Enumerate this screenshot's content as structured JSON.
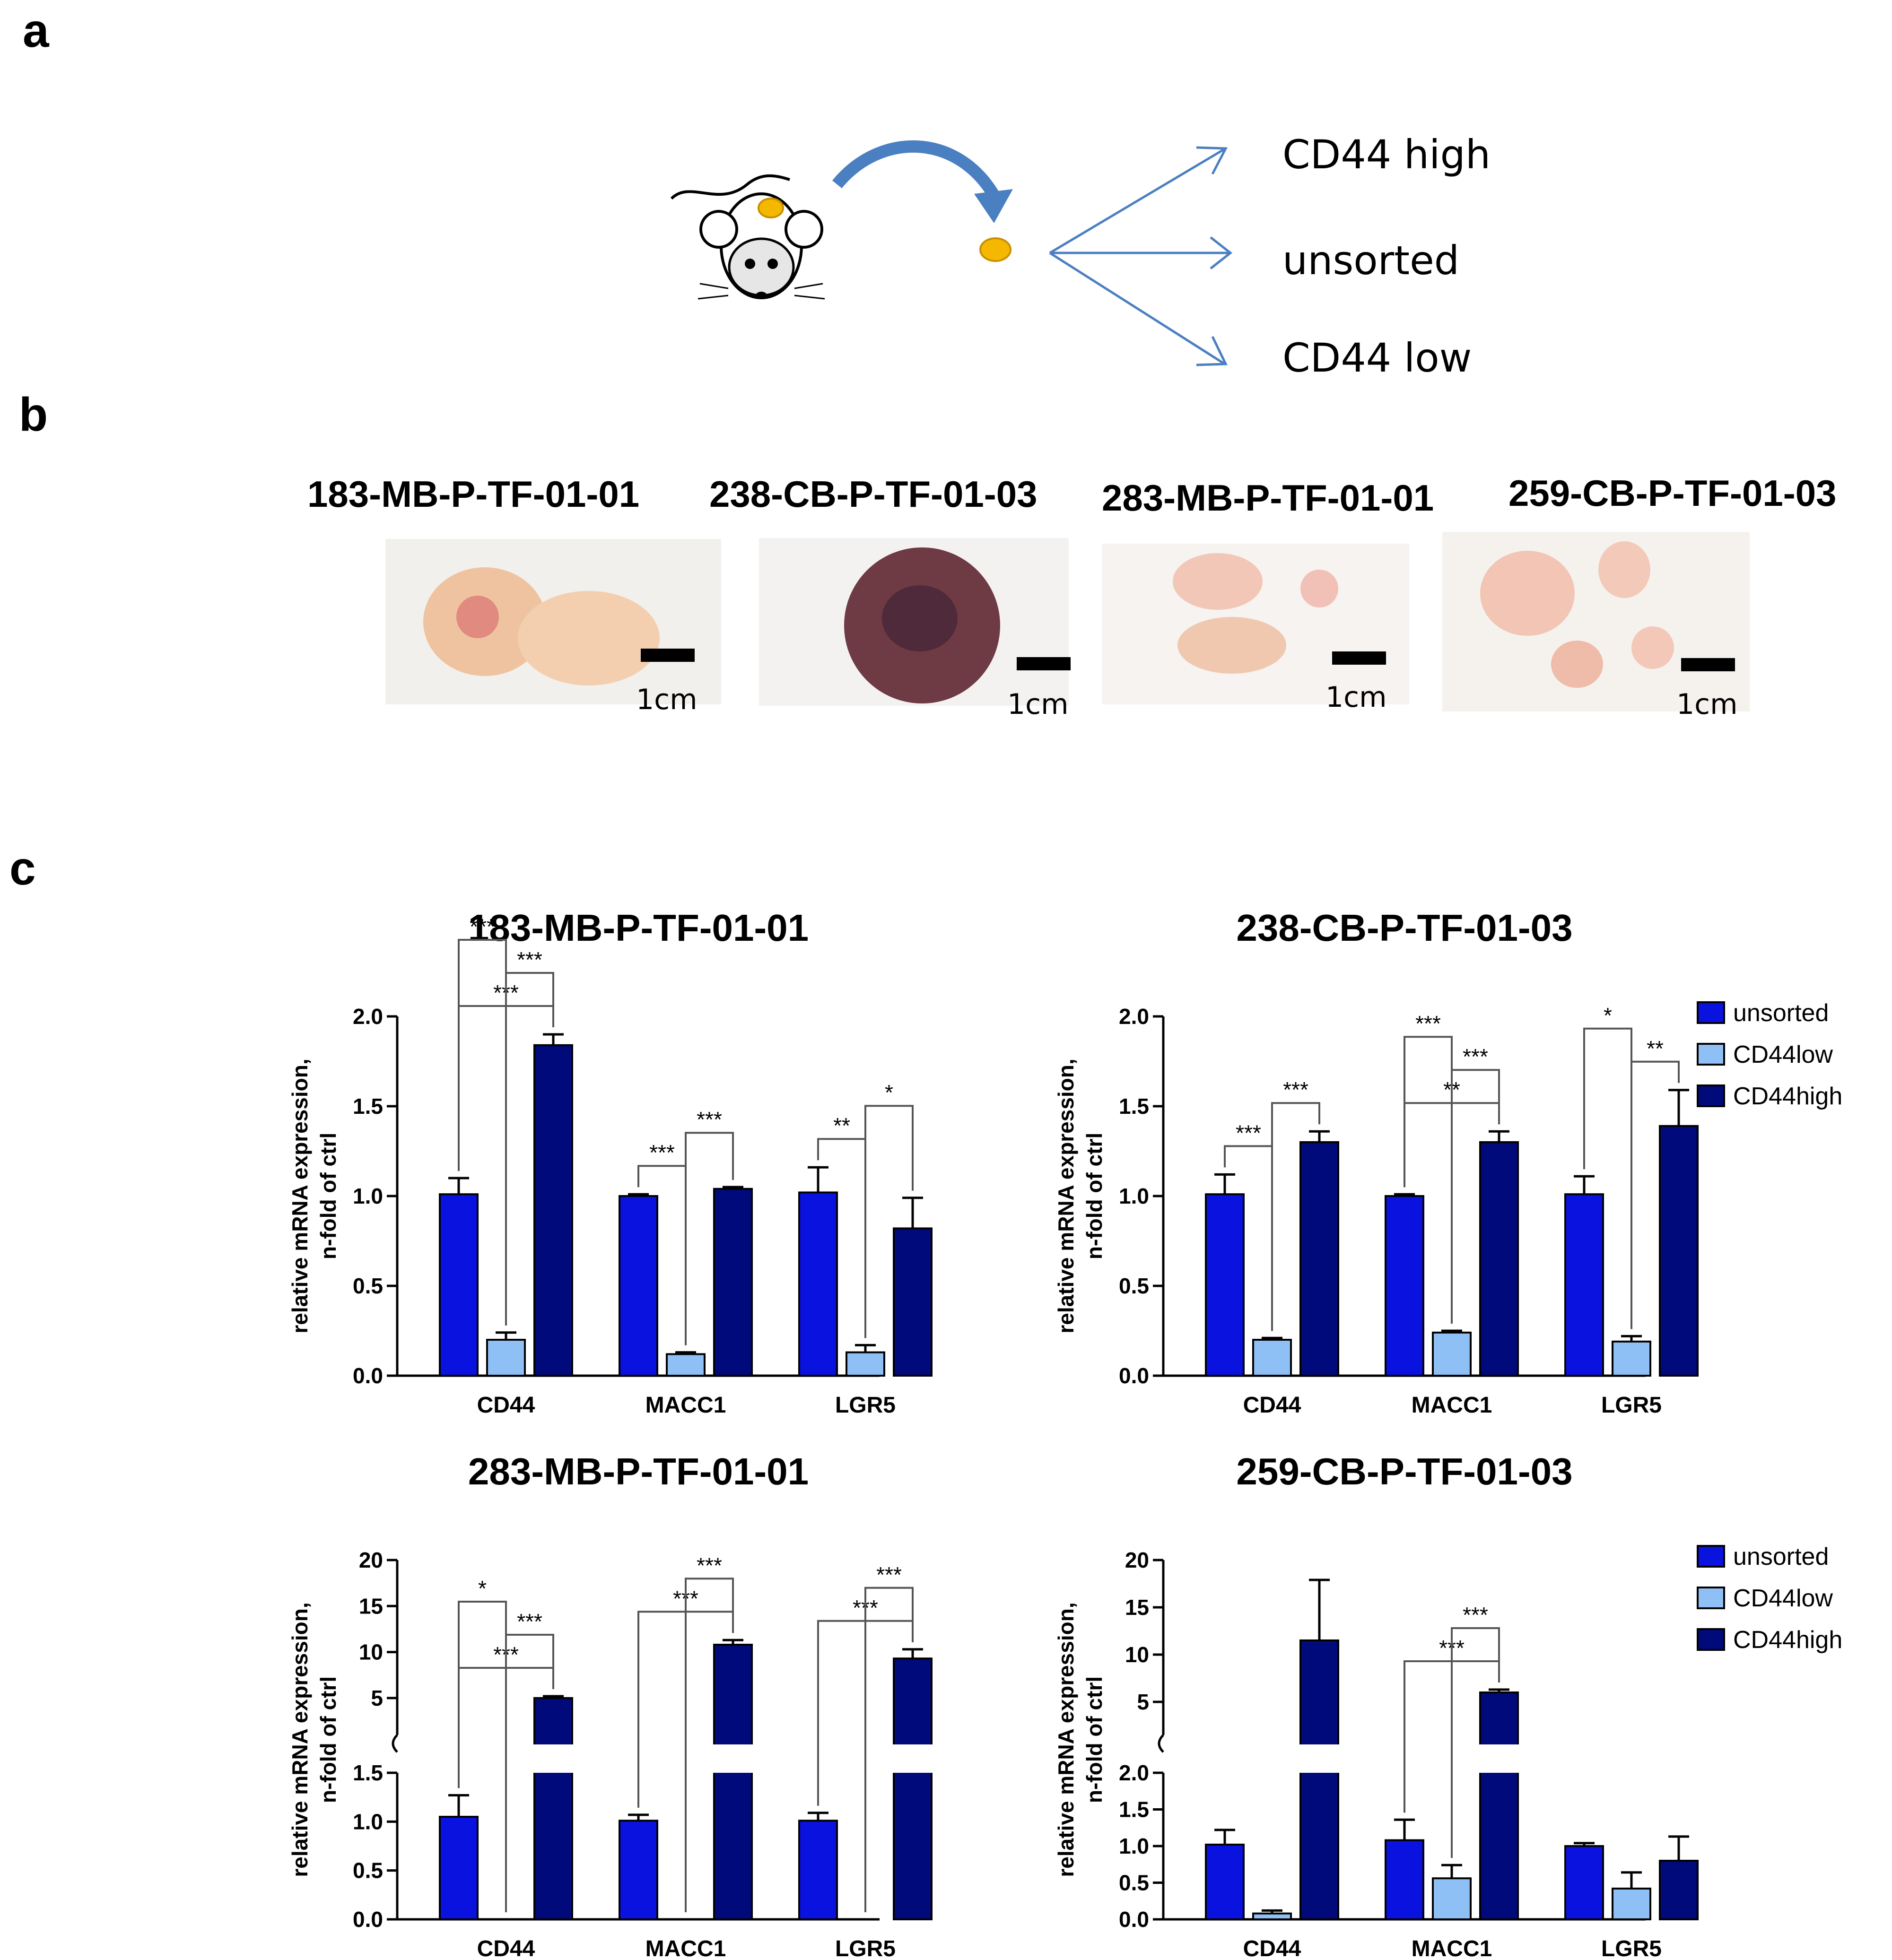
{
  "figure": {
    "panel_labels": {
      "a": "a",
      "b": "b",
      "c": "c"
    },
    "schematic": {
      "icons": [
        "mouse-icon",
        "tumor-icon",
        "transfer-arrow-icon",
        "split-arrows-icon"
      ],
      "colors": {
        "arrow": "#4a7fc1",
        "tumor": "#f5b800"
      },
      "outputs": [
        "CD44 high",
        "unsorted",
        "CD44 low"
      ]
    },
    "photos": [
      {
        "title": "183-MB-P-TF-01-01",
        "scale": "1cm"
      },
      {
        "title": "238-CB-P-TF-01-03",
        "scale": "1cm"
      },
      {
        "title": "283-MB-P-TF-01-01",
        "scale": "1cm"
      },
      {
        "title": "259-CB-P-TF-01-03",
        "scale": "1cm"
      }
    ]
  },
  "chart_data": [
    {
      "type": "bar",
      "title": "183-MB-P-TF-01-01",
      "ylabel": "relative mRNA expression, n-fold of ctrl",
      "categories": [
        "CD44",
        "MACC1",
        "LGR5"
      ],
      "ylim": [
        0,
        2.0
      ],
      "yticks": [
        "0.0",
        "0.5",
        "1.0",
        "1.5",
        "2.0"
      ],
      "series": [
        {
          "name": "unsorted",
          "color": "#0a12e0",
          "values": [
            1.01,
            1.0,
            1.02
          ],
          "errors": [
            0.09,
            0.01,
            0.14
          ]
        },
        {
          "name": "CD44low",
          "color": "#8fc0f5",
          "values": [
            0.2,
            0.12,
            0.13
          ],
          "errors": [
            0.04,
            0.01,
            0.04
          ]
        },
        {
          "name": "CD44high",
          "color": "#000a7a",
          "values": [
            1.84,
            1.04,
            0.82
          ],
          "errors": [
            0.06,
            0.01,
            0.17
          ]
        }
      ],
      "significance": [
        {
          "cat": 0,
          "from": 0,
          "to": 2,
          "label": "***"
        },
        {
          "cat": 0,
          "from": 1,
          "to": 2,
          "label": "***"
        },
        {
          "cat": 0,
          "from": 0,
          "to": 1,
          "label": "***"
        },
        {
          "cat": 1,
          "from": 0,
          "to": 1,
          "label": "***"
        },
        {
          "cat": 1,
          "from": 1,
          "to": 2,
          "label": "***"
        },
        {
          "cat": 2,
          "from": 0,
          "to": 1,
          "label": "**"
        },
        {
          "cat": 2,
          "from": 1,
          "to": 2,
          "label": "*"
        }
      ],
      "legend": null
    },
    {
      "type": "bar",
      "title": "238-CB-P-TF-01-03",
      "ylabel": "relative mRNA expression, n-fold of ctrl",
      "categories": [
        "CD44",
        "MACC1",
        "LGR5"
      ],
      "ylim": [
        0,
        2.0
      ],
      "yticks": [
        "0.0",
        "0.5",
        "1.0",
        "1.5",
        "2.0"
      ],
      "series": [
        {
          "name": "unsorted",
          "color": "#0a12e0",
          "values": [
            1.01,
            1.0,
            1.01
          ],
          "errors": [
            0.11,
            0.01,
            0.1
          ]
        },
        {
          "name": "CD44low",
          "color": "#8fc0f5",
          "values": [
            0.2,
            0.24,
            0.19
          ],
          "errors": [
            0.01,
            0.01,
            0.03
          ]
        },
        {
          "name": "CD44high",
          "color": "#000a7a",
          "values": [
            1.3,
            1.3,
            1.39
          ],
          "errors": [
            0.06,
            0.06,
            0.2
          ]
        }
      ],
      "significance": [
        {
          "cat": 0,
          "from": 0,
          "to": 1,
          "label": "***"
        },
        {
          "cat": 0,
          "from": 1,
          "to": 2,
          "label": "***"
        },
        {
          "cat": 1,
          "from": 0,
          "to": 2,
          "label": "**"
        },
        {
          "cat": 1,
          "from": 1,
          "to": 2,
          "label": "***"
        },
        {
          "cat": 1,
          "from": 0,
          "to": 1,
          "label": "***"
        },
        {
          "cat": 2,
          "from": 1,
          "to": 2,
          "label": "**"
        },
        {
          "cat": 2,
          "from": 0,
          "to": 1,
          "label": "*"
        }
      ],
      "legend": [
        "unsorted",
        "CD44low",
        "CD44high"
      ]
    },
    {
      "type": "bar",
      "title": "283-MB-P-TF-01-01",
      "ylabel": "relative mRNA expression, n-fold of ctrl",
      "categories": [
        "CD44",
        "MACC1",
        "LGR5"
      ],
      "broken_axis": {
        "lower": [
          0,
          1.5
        ],
        "upper": [
          1.5,
          20
        ]
      },
      "yticks_lower": [
        "0.0",
        "0.5",
        "1.0",
        "1.5"
      ],
      "yticks_upper": [
        "5",
        "10",
        "15",
        "20"
      ],
      "series": [
        {
          "name": "unsorted",
          "color": "#0a12e0",
          "values": [
            1.05,
            1.01,
            1.01
          ],
          "errors": [
            0.22,
            0.06,
            0.08
          ]
        },
        {
          "name": "CD44low",
          "color": "#8fc0f5",
          "values": [
            0.0,
            0.0,
            0.0
          ],
          "errors": [
            0,
            0,
            0
          ]
        },
        {
          "name": "CD44high",
          "color": "#000a7a",
          "values": [
            5.0,
            10.8,
            9.3
          ],
          "errors": [
            0.2,
            0.5,
            1.0
          ]
        }
      ],
      "significance": [
        {
          "cat": 0,
          "from": 0,
          "to": 2,
          "label": "***"
        },
        {
          "cat": 0,
          "from": 1,
          "to": 2,
          "label": "***"
        },
        {
          "cat": 0,
          "from": 0,
          "to": 1,
          "label": "*"
        },
        {
          "cat": 1,
          "from": 0,
          "to": 2,
          "label": "***"
        },
        {
          "cat": 1,
          "from": 1,
          "to": 2,
          "label": "***"
        },
        {
          "cat": 2,
          "from": 0,
          "to": 2,
          "label": "***"
        },
        {
          "cat": 2,
          "from": 1,
          "to": 2,
          "label": "***"
        }
      ],
      "legend": null
    },
    {
      "type": "bar",
      "title": "259-CB-P-TF-01-03",
      "ylabel": "relative mRNA expression, n-fold of ctrl",
      "categories": [
        "CD44",
        "MACC1",
        "LGR5"
      ],
      "broken_axis": {
        "lower": [
          0,
          2.0
        ],
        "upper": [
          2.0,
          20
        ]
      },
      "yticks_lower": [
        "0.0",
        "0.5",
        "1.0",
        "1.5",
        "2.0"
      ],
      "yticks_upper": [
        "5",
        "10",
        "15",
        "20"
      ],
      "series": [
        {
          "name": "unsorted",
          "color": "#0a12e0",
          "values": [
            1.02,
            1.08,
            1.0
          ],
          "errors": [
            0.2,
            0.28,
            0.04
          ]
        },
        {
          "name": "CD44low",
          "color": "#8fc0f5",
          "values": [
            0.08,
            0.56,
            0.42
          ],
          "errors": [
            0.04,
            0.18,
            0.22
          ]
        },
        {
          "name": "CD44high",
          "color": "#000a7a",
          "values": [
            11.5,
            6.0,
            0.8
          ],
          "errors": [
            6.4,
            0.3,
            0.33
          ]
        }
      ],
      "significance": [
        {
          "cat": 1,
          "from": 0,
          "to": 2,
          "label": "***"
        },
        {
          "cat": 1,
          "from": 1,
          "to": 2,
          "label": "***"
        }
      ],
      "legend": [
        "unsorted",
        "CD44low",
        "CD44high"
      ]
    }
  ]
}
